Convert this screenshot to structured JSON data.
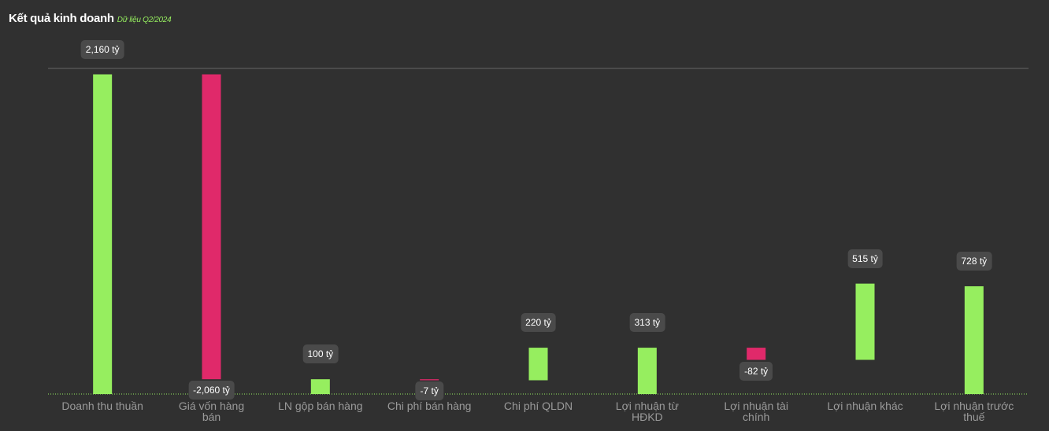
{
  "chart_data": {
    "type": "waterfall",
    "title": "Kết quả kinh doanh",
    "subtitle": "Dữ liệu Q2/2024",
    "categories": [
      "Doanh thu thuần",
      "Giá vốn hàng bán",
      "LN gộp bán hàng",
      "Chi phí bán hàng",
      "Chi phí QLDN",
      "Lợi nhuận từ HĐKD",
      "Lợi nhuận tài chính",
      "Lợi nhuận khác",
      "Lợi nhuận trước thuế"
    ],
    "values": [
      2160,
      -2060,
      100,
      -7,
      220,
      313,
      -82,
      515,
      728
    ],
    "value_labels": [
      "2,160 tỷ",
      "-2,060 tỷ",
      "100 tỷ",
      "-7 tỷ",
      "220 tỷ",
      "313 tỷ",
      "-82 tỷ",
      "515 tỷ",
      "728 tỷ"
    ],
    "measure": [
      "absolute",
      "relative",
      "absolute",
      "relative",
      "relative",
      "absolute",
      "relative",
      "relative",
      "absolute"
    ],
    "increase_color": "#96ee5f",
    "decrease_color": "#e0296a",
    "ylim": [
      0,
      2200
    ]
  }
}
